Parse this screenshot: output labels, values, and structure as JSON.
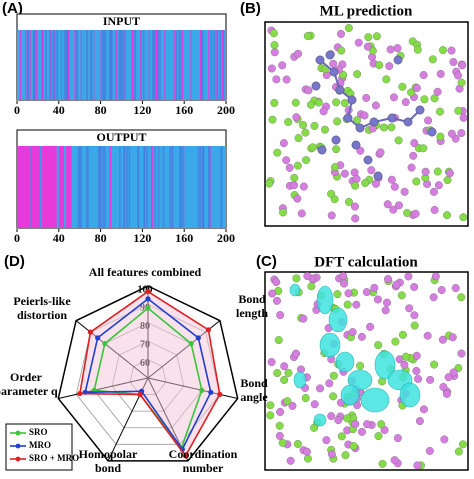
{
  "panels": {
    "a": {
      "label": "(A)",
      "type": "barcode",
      "input": {
        "title": "INPUT",
        "stripes": [
          [
            3,
            4
          ],
          [
            8,
            9
          ],
          [
            12,
            13
          ],
          [
            18,
            19
          ],
          [
            24,
            25
          ],
          [
            31,
            32
          ],
          [
            36,
            37
          ],
          [
            42,
            43
          ],
          [
            49,
            50
          ],
          [
            55,
            56
          ],
          [
            61,
            62
          ],
          [
            67,
            68
          ],
          [
            73,
            74
          ],
          [
            80,
            81
          ],
          [
            88,
            89
          ],
          [
            95,
            96
          ],
          [
            103,
            104
          ],
          [
            110,
            111
          ],
          [
            118,
            119
          ],
          [
            126,
            127
          ],
          [
            133,
            134
          ],
          [
            141,
            142
          ],
          [
            150,
            151
          ],
          [
            158,
            159
          ],
          [
            166,
            167
          ],
          [
            175,
            176
          ],
          [
            183,
            184
          ],
          [
            190,
            191
          ],
          [
            196,
            197
          ]
        ]
      },
      "output": {
        "title": "OUTPUT",
        "stripes": [
          [
            0,
            12
          ],
          [
            13,
            22
          ],
          [
            24,
            38
          ],
          [
            40,
            45
          ],
          [
            47,
            52
          ],
          [
            89,
            90
          ],
          [
            129,
            130
          ],
          [
            159,
            160
          ],
          [
            184,
            185
          ]
        ]
      },
      "xlim": [
        0,
        200
      ],
      "xticks": [
        0,
        40,
        80,
        120,
        160,
        200
      ],
      "base_color": "#3aa9e8",
      "stripe_color": "#e83ad8"
    },
    "b": {
      "label": "(B)",
      "title": "ML prediction"
    },
    "c": {
      "label": "(C)",
      "title": "DFT calculation"
    }
  },
  "chart_data": {
    "type": "radar",
    "label": "(D)",
    "axes": [
      "All features combined",
      "Bond length",
      "Bond angle",
      "Coordination number",
      "Homopolar bond",
      "Order parameter q",
      "Peierls-like distortion"
    ],
    "rlim": [
      50,
      100
    ],
    "rticks": [
      60,
      70,
      80,
      90,
      100
    ],
    "series": [
      {
        "name": "SRO",
        "color": "#3cc43c",
        "values": [
          88,
          80,
          80,
          92,
          60,
          80,
          80
        ]
      },
      {
        "name": "MRO",
        "color": "#2040d0",
        "values": [
          93,
          85,
          85,
          93,
          58,
          85,
          85
        ]
      },
      {
        "name": "SRO + MRO",
        "color": "#e02020",
        "values": [
          97,
          92,
          90,
          97,
          60,
          88,
          90
        ]
      }
    ]
  }
}
